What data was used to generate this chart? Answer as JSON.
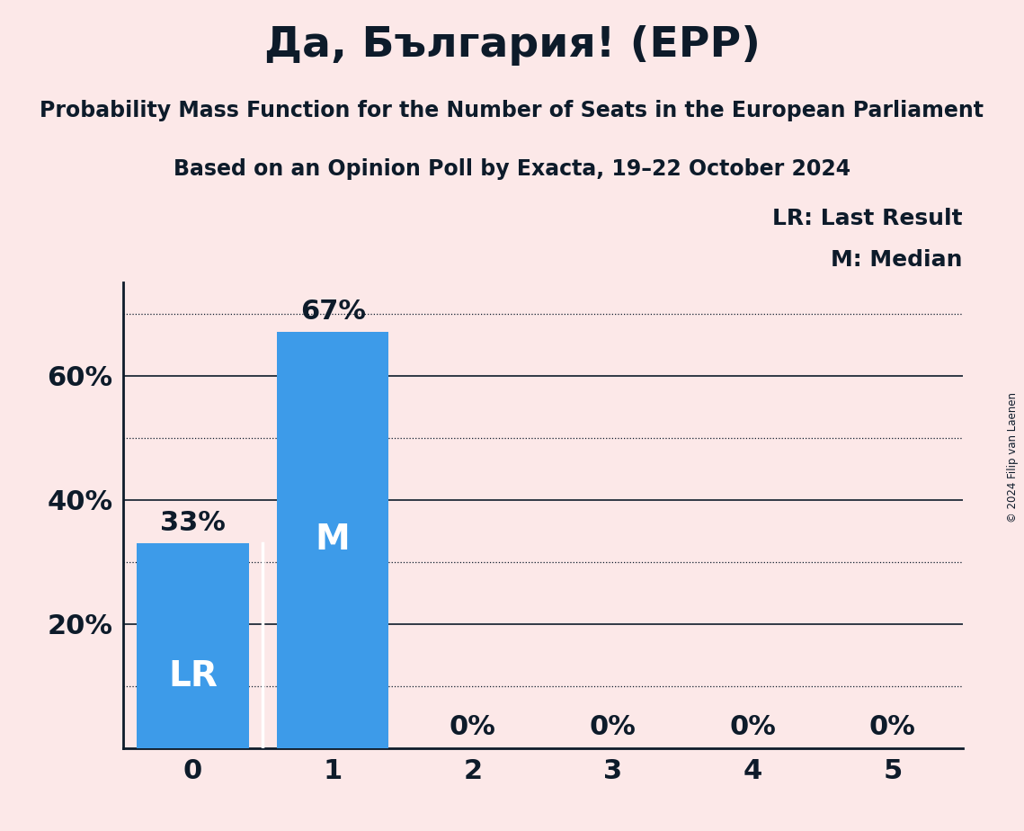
{
  "title": "Да, България! (EPP)",
  "subtitle1": "Probability Mass Function for the Number of Seats in the European Parliament",
  "subtitle2": "Based on an Opinion Poll by Exacta, 19–22 October 2024",
  "copyright": "© 2024 Filip van Laenen",
  "categories": [
    0,
    1,
    2,
    3,
    4,
    5
  ],
  "values": [
    0.33,
    0.67,
    0.0,
    0.0,
    0.0,
    0.0
  ],
  "bar_color": "#3d9be9",
  "background_color": "#fce8e8",
  "text_color": "#0d1b2a",
  "bar_labels": [
    "33%",
    "67%",
    "0%",
    "0%",
    "0%",
    "0%"
  ],
  "last_result_seat": 0,
  "median_seat": 1,
  "lr_label": "LR",
  "median_label": "M",
  "legend_lr": "LR: Last Result",
  "legend_m": "M: Median",
  "ylim": [
    0,
    0.75
  ],
  "yticks": [
    0.2,
    0.4,
    0.6
  ],
  "ytick_labels": [
    "20%",
    "40%",
    "60%"
  ],
  "title_fontsize": 34,
  "subtitle_fontsize": 17,
  "bar_label_fontsize": 22,
  "axis_tick_fontsize": 22,
  "in_bar_fontsize": 28,
  "legend_fontsize": 18,
  "solid_gridlines": [
    0.2,
    0.4,
    0.6
  ],
  "dotted_gridlines": [
    0.1,
    0.3,
    0.5,
    0.7
  ]
}
